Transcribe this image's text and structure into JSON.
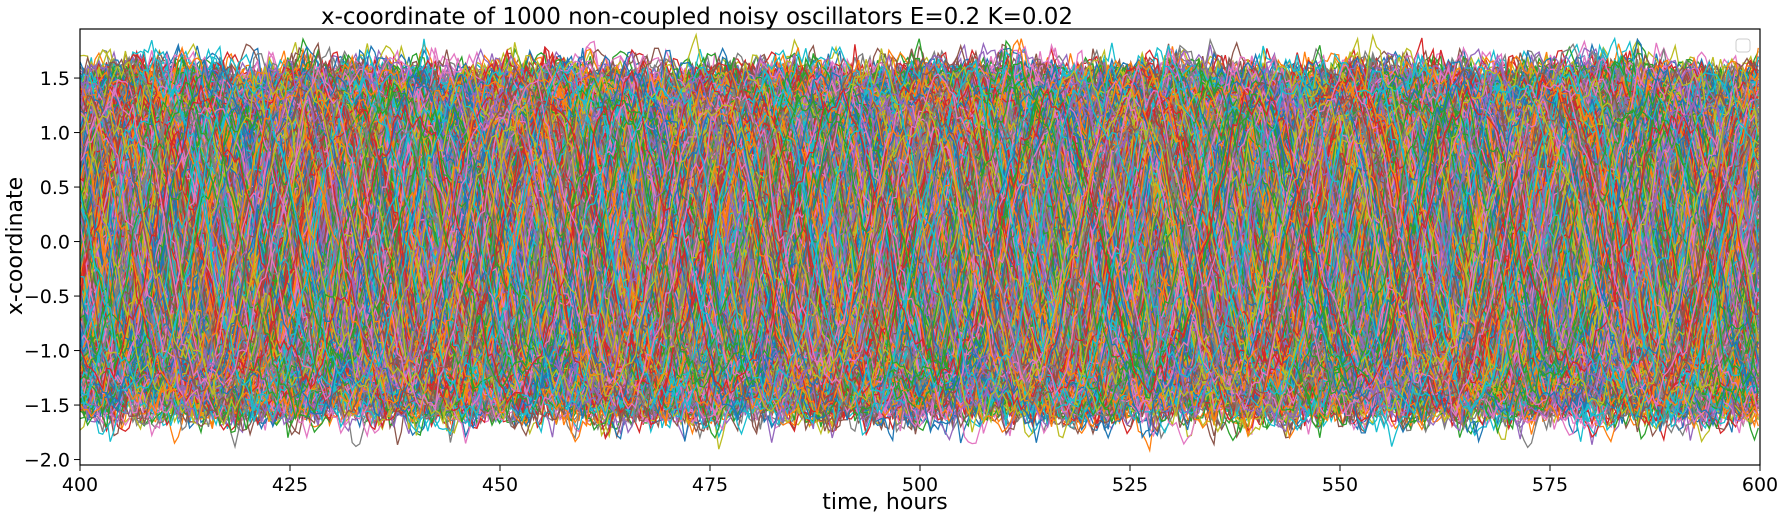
{
  "chart_data": {
    "type": "line",
    "title": "x-coordinate of 1000 non-coupled noisy oscillators E=0.2 K=0.02",
    "xlabel": "time, hours",
    "ylabel": "x-coordinate",
    "xlim": [
      400,
      600
    ],
    "ylim": [
      -2.05,
      1.95
    ],
    "x_ticks": [
      400,
      425,
      450,
      475,
      500,
      525,
      550,
      575,
      600
    ],
    "y_ticks": [
      -2.0,
      -1.5,
      -1.0,
      -0.5,
      0.0,
      0.5,
      1.0,
      1.5
    ],
    "x_tick_labels": [
      "400",
      "425",
      "450",
      "475",
      "500",
      "525",
      "550",
      "575",
      "600"
    ],
    "y_tick_labels": [
      "−2.0",
      "−1.5",
      "−1.0",
      "−0.5",
      "0.0",
      "0.5",
      "1.0",
      "1.5"
    ],
    "n_series": 1000,
    "period_hours": 24.5,
    "amplitude_approx": 1.4,
    "y_range_observed": [
      -1.75,
      1.8
    ],
    "grid": false,
    "legend": "top-right, empty",
    "palette": [
      "#1f77b4",
      "#ff7f0e",
      "#2ca02c",
      "#d62728",
      "#9467bd",
      "#8c564b",
      "#e377c2",
      "#7f7f7f",
      "#bcbd22",
      "#17becf"
    ]
  }
}
